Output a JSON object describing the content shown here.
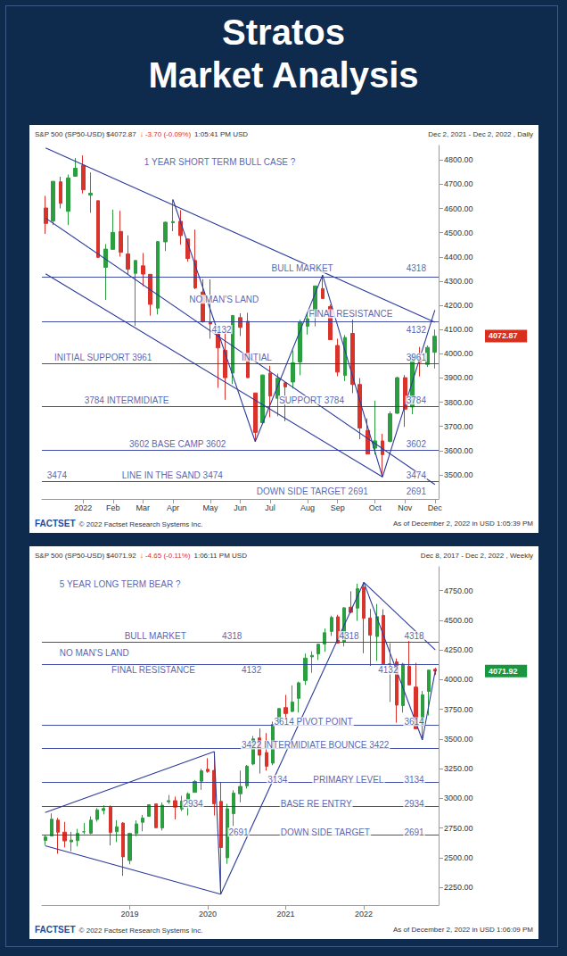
{
  "header": {
    "title": "Stratos",
    "subtitle": "Market Analysis"
  },
  "chart_data": [
    {
      "type": "candlestick",
      "title": "S&P 500 (SP50-USD) $4072.87",
      "change": "↓ -3.70 (-0.09%)",
      "time": "1:05:41 PM USD",
      "subtitle": "Dec 2, 2021 - Dec 2, 2022 , Daily",
      "source": "FACTSET",
      "copyright": "© 2022 Factset Research Systems Inc.",
      "as_of": "As of December 2, 2022 in USD 1:05:39 PM",
      "categories": [
        null,
        null,
        null,
        null,
        null,
        "2022",
        null,
        null,
        null,
        "Feb",
        null,
        null,
        null,
        "Mar",
        null,
        null,
        null,
        "Apr",
        null,
        null,
        null,
        null,
        "May",
        null,
        null,
        null,
        "Jun",
        null,
        null,
        null,
        "Jul",
        null,
        null,
        null,
        null,
        "Aug",
        null,
        null,
        null,
        "Sep",
        null,
        null,
        null,
        null,
        "Oct",
        null,
        null,
        null,
        "Nov",
        null,
        null,
        null,
        "Dec"
      ],
      "open": [
        4602,
        4548,
        4710,
        4588,
        4733,
        4778,
        4655,
        4632,
        4357,
        4431,
        4505,
        4412,
        4332,
        4363,
        4328,
        4188,
        4462,
        4541,
        4547,
        4474,
        4385,
        4255,
        4130,
        4082,
        4014,
        3920,
        4149,
        4134,
        3838,
        3715,
        3920,
        3816,
        3880,
        3883,
        3966,
        4113,
        4155,
        4269,
        4195,
        4034,
        3910,
        4084,
        3873,
        3683,
        3610,
        3640,
        3638,
        3754,
        3901,
        3780,
        3982,
        3956,
        4006
      ],
      "high": [
        4652,
        4713,
        4731,
        4740,
        4808,
        4819,
        4749,
        4632,
        4453,
        4595,
        4590,
        4489,
        4385,
        4416,
        4329,
        4465,
        4546,
        4637,
        4593,
        4474,
        4513,
        4308,
        4307,
        4082,
        4090,
        4159,
        4167,
        4169,
        3838,
        3914,
        3950,
        3918,
        3880,
        4013,
        4140,
        4167,
        4280,
        4325,
        4203,
        4062,
        4077,
        4141,
        3899,
        3733,
        3806,
        3669,
        3762,
        3905,
        3912,
        4000,
        4028,
        4034,
        4100
      ],
      "low": [
        4495,
        4531,
        4600,
        4531,
        4733,
        4662,
        4582,
        4395,
        4222,
        4431,
        4401,
        4327,
        4115,
        4279,
        4157,
        4162,
        4424,
        4506,
        4450,
        4381,
        4267,
        4128,
        4062,
        3859,
        3810,
        3875,
        4073,
        3900,
        3637,
        3715,
        3738,
        3742,
        3721,
        3856,
        3911,
        4079,
        4113,
        4229,
        4058,
        3907,
        3887,
        3837,
        3647,
        3584,
        3584,
        3491,
        3634,
        3752,
        3698,
        3750,
        3906,
        3945,
        3939
      ],
      "close": [
        4538,
        4712,
        4621,
        4726,
        4766,
        4677,
        4663,
        4398,
        4432,
        4501,
        4419,
        4349,
        4385,
        4329,
        4204,
        4463,
        4543,
        4546,
        4488,
        4393,
        4272,
        4132,
        4123,
        4024,
        3901,
        4158,
        4109,
        3901,
        3675,
        3912,
        3825,
        3899,
        3863,
        3962,
        4130,
        4145,
        4280,
        4228,
        4058,
        3924,
        4067,
        3873,
        3693,
        3586,
        3640,
        3583,
        3752,
        3901,
        3771,
        3993,
        3965,
        4026,
        4072
      ],
      "last_price": {
        "value": 4072.87,
        "color": "#d7301f"
      },
      "ylim": [
        3400,
        4860
      ],
      "yticks": [
        {
          "value": 3500,
          "label": "3500.00"
        },
        {
          "value": 3600,
          "label": "3600.00"
        },
        {
          "value": 3700,
          "label": "3700.00"
        },
        {
          "value": 3800,
          "label": "3800.00"
        },
        {
          "value": 3900,
          "label": "3900.00"
        },
        {
          "value": 4000,
          "label": "4000.00"
        },
        {
          "value": 4100,
          "label": "4100.00"
        },
        {
          "value": 4200,
          "label": "4200.00"
        },
        {
          "value": 4300,
          "label": "4300.00"
        },
        {
          "value": 4400,
          "label": "4400.00"
        },
        {
          "value": 4500,
          "label": "4500.00"
        },
        {
          "value": 4600,
          "label": "4600.00"
        },
        {
          "value": 4700,
          "label": "4700.00"
        },
        {
          "value": 4800,
          "label": "4800.00"
        }
      ],
      "grid": false,
      "levels": [
        4318,
        4132,
        3961,
        3784,
        3602,
        3474
      ],
      "trend_lines": [
        [
          [
            0,
            4850
          ],
          [
            52,
            4130
          ]
        ],
        [
          [
            0,
            4560
          ],
          [
            52,
            3460
          ]
        ],
        [
          [
            0,
            4330
          ],
          [
            45,
            3491
          ]
        ],
        [
          [
            17,
            4637
          ],
          [
            28,
            3637
          ]
        ],
        [
          [
            28,
            3637
          ],
          [
            37,
            4325
          ]
        ],
        [
          [
            37,
            4325
          ],
          [
            45,
            3491
          ]
        ],
        [
          [
            45,
            3491
          ],
          [
            52,
            4180
          ]
        ]
      ],
      "annotations": [
        {
          "text": "1 YEAR SHORT TERM BULL CASE ?",
          "x": 13,
          "y": 4790
        },
        {
          "text": "BULL MARKET",
          "x": 30,
          "y": 4352
        },
        {
          "text": "4318",
          "x": 48,
          "y": 4352
        },
        {
          "text": "NO MAN'S LAND",
          "x": 19,
          "y": 4225
        },
        {
          "text": "4132",
          "x": 22,
          "y": 4100
        },
        {
          "text": "FINAL RESISTANCE",
          "x": 35,
          "y": 4165
        },
        {
          "text": "4132",
          "x": 48,
          "y": 4100
        },
        {
          "text": "INITIAL SUPPORT 3961",
          "x": 1,
          "y": 3985
        },
        {
          "text": "INITIAL",
          "x": 26,
          "y": 3985
        },
        {
          "text": "3961",
          "x": 48,
          "y": 3985
        },
        {
          "text": "3784 INTERMIDIATE",
          "x": 5,
          "y": 3808
        },
        {
          "text": "SUPPORT 3784",
          "x": 31,
          "y": 3808
        },
        {
          "text": "3784",
          "x": 48,
          "y": 3808
        },
        {
          "text": "3602 BASE CAMP 3602",
          "x": 11,
          "y": 3625
        },
        {
          "text": "3602",
          "x": 48,
          "y": 3625
        },
        {
          "text": "3474",
          "x": 0,
          "y": 3497
        },
        {
          "text": "LINE IN THE SAND 3474",
          "x": 10,
          "y": 3497
        },
        {
          "text": "3474",
          "x": 48,
          "y": 3497
        },
        {
          "text": "DOWN SIDE TARGET 2691",
          "x": 28,
          "y": 3432
        },
        {
          "text": "2691",
          "x": 48,
          "y": 3432
        }
      ]
    },
    {
      "type": "candlestick",
      "title": "S&P 500 (SP50-USD) $4071.92",
      "change": "↓ -4.65 (-0.11%)",
      "time": "1:06:11 PM USD",
      "subtitle": "Dec 8, 2017 - Dec 2, 2022 , Weekly",
      "source": "FACTSET",
      "copyright": "© 2022 Factset Research Systems Inc.",
      "as_of": "As of December 2, 2022 in USD 1:06:09 PM",
      "categories": [
        null,
        null,
        null,
        null,
        null,
        null,
        null,
        null,
        null,
        null,
        null,
        null,
        null,
        "2019",
        null,
        null,
        null,
        null,
        null,
        null,
        null,
        null,
        null,
        null,
        null,
        "2020",
        null,
        null,
        null,
        null,
        null,
        null,
        null,
        null,
        null,
        null,
        null,
        "2021",
        null,
        null,
        null,
        null,
        null,
        null,
        null,
        null,
        null,
        null,
        null,
        "2022",
        null,
        null,
        null,
        null,
        null,
        null,
        null,
        null,
        null,
        null,
        null
      ],
      "open": [
        2645,
        2683,
        2816,
        2715,
        2633,
        2643,
        2718,
        2705,
        2822,
        2897,
        2926,
        2718,
        2791,
        2476,
        2703,
        2798,
        2848,
        2952,
        2751,
        2971,
        2980,
        2910,
        2983,
        3050,
        3144,
        3244,
        3235,
        2974,
        2499,
        2870,
        3038,
        3105,
        3289,
        3508,
        3385,
        3296,
        3645,
        3764,
        3732,
        3842,
        3992,
        4191,
        4217,
        4300,
        4406,
        4529,
        4317,
        4610,
        4602,
        4778,
        4519,
        4363,
        4541,
        4130,
        4149,
        3781,
        4113,
        3937,
        3610,
        3901,
        4087
      ],
      "high": [
        2694,
        2873,
        2835,
        2801,
        2718,
        2742,
        2791,
        2848,
        2917,
        2941,
        2940,
        2815,
        2800,
        2709,
        2814,
        2860,
        2949,
        2954,
        2964,
        3028,
        3014,
        3022,
        3050,
        3154,
        3248,
        3338,
        3394,
        3136,
        2954,
        3068,
        3233,
        3280,
        3525,
        3588,
        3550,
        3646,
        3760,
        3871,
        3951,
        3983,
        4219,
        4238,
        4302,
        4430,
        4538,
        4546,
        4608,
        4744,
        4808,
        4819,
        4595,
        4637,
        4593,
        4307,
        4178,
        4141,
        4325,
        4141,
        3905,
        4081,
        4100
      ],
      "low": [
        2605,
        2682,
        2533,
        2586,
        2553,
        2595,
        2699,
        2698,
        2803,
        2864,
        2603,
        2631,
        2347,
        2444,
        2681,
        2722,
        2848,
        2751,
        2728,
        2953,
        2822,
        2892,
        2855,
        3050,
        3071,
        3215,
        2855,
        2192,
        2448,
        2767,
        2966,
        3082,
        3279,
        3209,
        3234,
        3279,
        3633,
        3662,
        3725,
        3723,
        3955,
        4057,
        4165,
        4234,
        4368,
        4306,
        4279,
        4560,
        4495,
        4222,
        4115,
        4157,
        4129,
        3811,
        3637,
        3722,
        3955,
        3585,
        3491,
        3698,
        4039
      ],
      "close": [
        2674,
        2824,
        2714,
        2641,
        2648,
        2705,
        2718,
        2816,
        2902,
        2914,
        2712,
        2760,
        2507,
        2704,
        2784,
        2834,
        2946,
        2752,
        2942,
        2980,
        2926,
        2977,
        3038,
        3141,
        3231,
        3226,
        2954,
        2585,
        2912,
        3044,
        3100,
        3271,
        3500,
        3363,
        3270,
        3622,
        3756,
        3714,
        3811,
        3973,
        4181,
        4204,
        4298,
        4395,
        4523,
        4308,
        4605,
        4567,
        4766,
        4516,
        4374,
        4530,
        4132,
        4132,
        3785,
        4130,
        3955,
        3586,
        3872,
        4080,
        4072
      ],
      "last_price": {
        "value": 4071.92,
        "color": "#1a9641"
      },
      "ylim": [
        2100,
        4950
      ],
      "yticks": [
        {
          "value": 2250,
          "label": "2250.00"
        },
        {
          "value": 2500,
          "label": "2500.00"
        },
        {
          "value": 2750,
          "label": "2750.00"
        },
        {
          "value": 3000,
          "label": "3000.00"
        },
        {
          "value": 3250,
          "label": "3250.00"
        },
        {
          "value": 3500,
          "label": "3500.00"
        },
        {
          "value": 3750,
          "label": "3750.00"
        },
        {
          "value": 4000,
          "label": "4000.00"
        },
        {
          "value": 4250,
          "label": "4250.00"
        },
        {
          "value": 4500,
          "label": "4500.00"
        },
        {
          "value": 4750,
          "label": "4750.00"
        }
      ],
      "grid": false,
      "levels": [
        4318,
        4132,
        3614,
        3422,
        3134,
        2934,
        2691
      ],
      "trend_lines": [
        [
          [
            0,
            2600
          ],
          [
            27,
            2192
          ]
        ],
        [
          [
            0,
            2880
          ],
          [
            26,
            3394
          ]
        ],
        [
          [
            26,
            3394
          ],
          [
            27,
            2192
          ]
        ],
        [
          [
            27,
            2192
          ],
          [
            49,
            4819
          ]
        ],
        [
          [
            49,
            4819
          ],
          [
            58,
            3491
          ]
        ],
        [
          [
            58,
            3491
          ],
          [
            60,
            4080
          ]
        ],
        [
          [
            49,
            4819
          ],
          [
            60,
            4250
          ]
        ]
      ],
      "annotations": [
        {
          "text": "5 YEAR LONG TERM BEAR ?",
          "x": 2,
          "y": 4800
        },
        {
          "text": "BULL MARKET",
          "x": 12,
          "y": 4370
        },
        {
          "text": "NO MAN'S LAND",
          "x": 2,
          "y": 4225
        },
        {
          "text": "4318",
          "x": 27,
          "y": 4370
        },
        {
          "text": "4318",
          "x": 45,
          "y": 4370
        },
        {
          "text": "4318",
          "x": 55,
          "y": 4370
        },
        {
          "text": "FINAL RESISTANCE",
          "x": 10,
          "y": 4080
        },
        {
          "text": "4132",
          "x": 30,
          "y": 4080
        },
        {
          "text": "4132",
          "x": 51,
          "y": 4080
        },
        {
          "text": "3614 PIVOT POINT",
          "x": 35,
          "y": 3645
        },
        {
          "text": "3614",
          "x": 55,
          "y": 3645
        },
        {
          "text": "3422 INTERMIDIATE BOUNCE 3422",
          "x": 30,
          "y": 3450
        },
        {
          "text": "3134",
          "x": 34,
          "y": 3160
        },
        {
          "text": "PRIMARY LEVEL",
          "x": 41,
          "y": 3160
        },
        {
          "text": "3134",
          "x": 55,
          "y": 3160
        },
        {
          "text": "2934",
          "x": 21,
          "y": 2955
        },
        {
          "text": "BASE RE ENTRY",
          "x": 36,
          "y": 2955
        },
        {
          "text": "2934",
          "x": 55,
          "y": 2955
        },
        {
          "text": "2691",
          "x": 28,
          "y": 2715
        },
        {
          "text": "DOWN SIDE TARGET",
          "x": 36,
          "y": 2715
        },
        {
          "text": "2691",
          "x": 55,
          "y": 2715
        }
      ]
    }
  ]
}
